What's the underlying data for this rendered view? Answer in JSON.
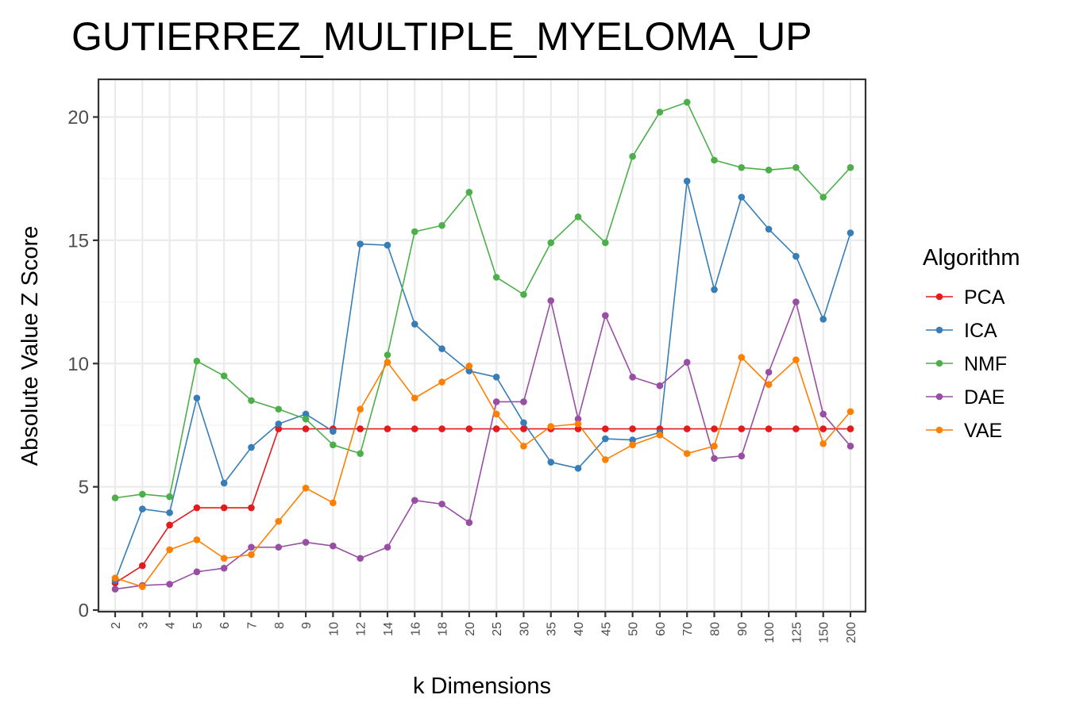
{
  "chart_data": {
    "type": "line",
    "title": "GUTIERREZ_MULTIPLE_MYELOMA_UP",
    "xlabel": "k Dimensions",
    "ylabel": "Absolute Value Z Score",
    "ylim": [
      0,
      21.5
    ],
    "yticks": [
      "0",
      "5",
      "10",
      "15",
      "20"
    ],
    "categories": [
      "2",
      "3",
      "4",
      "5",
      "6",
      "7",
      "8",
      "9",
      "10",
      "12",
      "14",
      "16",
      "18",
      "20",
      "25",
      "30",
      "35",
      "40",
      "45",
      "50",
      "60",
      "70",
      "80",
      "90",
      "100",
      "125",
      "150",
      "200"
    ],
    "grid": true,
    "legend": {
      "title": "Algorithm",
      "position": "right"
    },
    "series": [
      {
        "name": "PCA",
        "color": "#e41a1c",
        "values": [
          1.1,
          1.8,
          3.45,
          4.15,
          4.15,
          4.15,
          7.35,
          7.35,
          7.35,
          7.35,
          7.35,
          7.35,
          7.35,
          7.35,
          7.35,
          7.35,
          7.35,
          7.35,
          7.35,
          7.35,
          7.35,
          7.35,
          7.35,
          7.35,
          7.35,
          7.35,
          7.35,
          7.35
        ]
      },
      {
        "name": "ICA",
        "color": "#377eb8",
        "values": [
          1.2,
          4.1,
          3.95,
          8.6,
          5.15,
          6.6,
          7.55,
          7.95,
          7.25,
          14.85,
          14.8,
          11.6,
          10.6,
          9.7,
          9.45,
          7.6,
          6.0,
          5.75,
          6.95,
          6.9,
          7.2,
          17.4,
          13.0,
          16.75,
          15.45,
          14.35,
          11.8,
          15.3
        ]
      },
      {
        "name": "NMF",
        "color": "#4daf4a",
        "values": [
          4.55,
          4.7,
          4.6,
          10.1,
          9.5,
          8.5,
          8.15,
          7.75,
          6.7,
          6.35,
          10.35,
          15.35,
          15.6,
          16.95,
          13.5,
          12.8,
          14.9,
          15.95,
          14.9,
          18.4,
          20.2,
          20.6,
          18.25,
          17.95,
          17.85,
          17.95,
          16.75,
          17.95
        ]
      },
      {
        "name": "DAE",
        "color": "#984ea3",
        "values": [
          0.85,
          1.0,
          1.05,
          1.55,
          1.7,
          2.55,
          2.55,
          2.75,
          2.6,
          2.1,
          2.55,
          4.45,
          4.3,
          3.55,
          8.45,
          8.45,
          12.55,
          7.75,
          11.95,
          9.45,
          9.1,
          10.05,
          6.15,
          6.25,
          9.65,
          12.5,
          7.95,
          6.65
        ]
      },
      {
        "name": "VAE",
        "color": "#ff7f00",
        "values": [
          1.3,
          0.95,
          2.45,
          2.85,
          2.1,
          2.25,
          3.6,
          4.95,
          4.35,
          8.15,
          10.05,
          8.6,
          9.25,
          9.9,
          7.95,
          6.65,
          7.45,
          7.55,
          6.1,
          6.7,
          7.1,
          6.35,
          6.65,
          10.25,
          9.15,
          10.15,
          6.75,
          8.05
        ]
      }
    ]
  }
}
